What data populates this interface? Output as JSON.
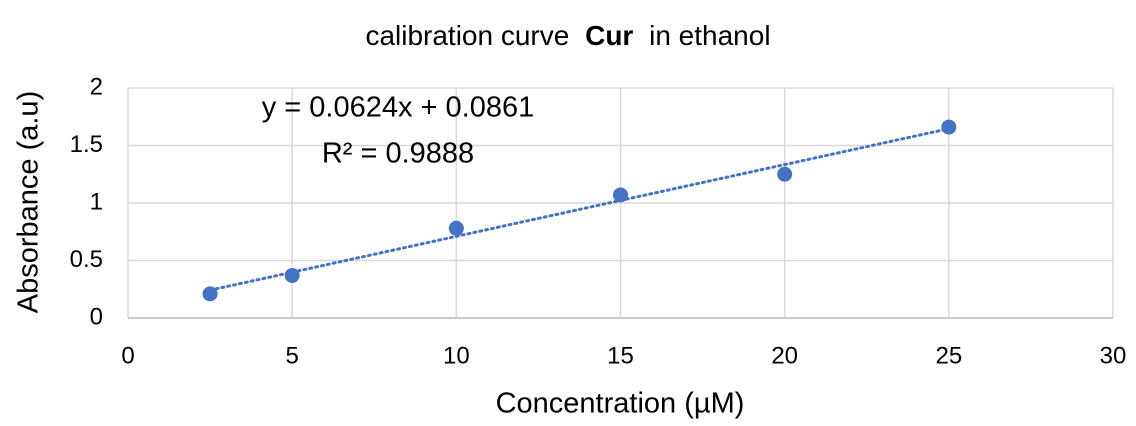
{
  "chart_data": {
    "type": "scatter",
    "title_parts": [
      "calibration curve",
      "Cur",
      "in ethanol"
    ],
    "x_label": "Concentration (µM)",
    "y_label": "Absorbance (a.u)",
    "x": [
      2.5,
      5,
      10,
      15,
      20,
      25
    ],
    "series": [
      {
        "name": "Cur",
        "color": "#4472c4",
        "values": [
          0.21,
          0.37,
          0.78,
          1.07,
          1.25,
          1.66
        ]
      }
    ],
    "trendline": {
      "slope": 0.0624,
      "intercept": 0.0861,
      "equation": "y = 0.0624x + 0.0861",
      "r2": "R² = 0.9888"
    },
    "xlim": [
      0,
      30
    ],
    "xticks": [
      0,
      5,
      10,
      15,
      20,
      25,
      30
    ],
    "ylim": [
      0,
      2
    ],
    "yticks": [
      0,
      0.5,
      1,
      1.5,
      2
    ],
    "grid": true
  }
}
